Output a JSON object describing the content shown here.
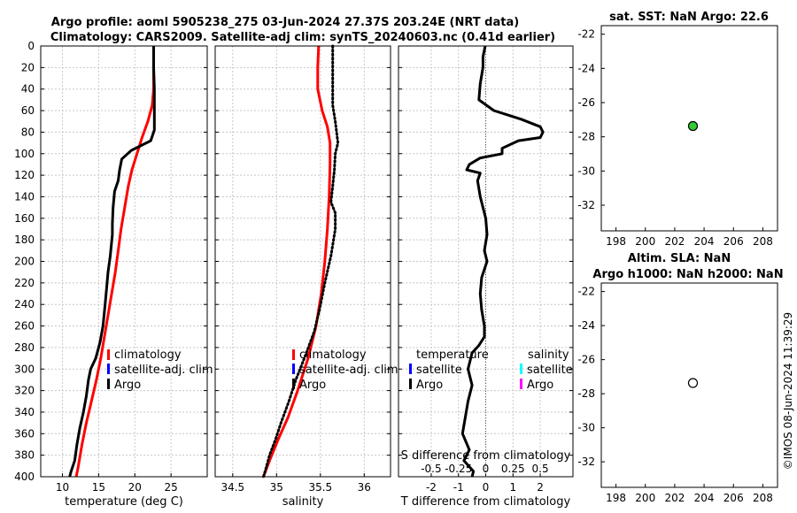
{
  "title": {
    "line1": "Argo profile: aoml 5905238_275 03-Jun-2024 27.37S 203.24E (NRT data)",
    "line2": "Climatology: CARS2009. Satellite-adj clim: synTS_20240603.nc (0.41d earlier)"
  },
  "side_titles": {
    "sst": "sat. SST: NaN Argo: 22.6",
    "sla_line1": "Altim. SLA: NaN",
    "sla_line2": "Argo h1000: NaN h2000: NaN"
  },
  "stamp": "©IMOS 08-Jun-2024 11:39:29",
  "legend": {
    "climatology": "climatology",
    "satellite_adj": "satellite-adj. clim",
    "argo": "Argo",
    "temperature": "temperature",
    "salinity": "salinity",
    "satellite": "satellite"
  },
  "colors": {
    "climatology": "#ff0000",
    "satellite_adj": "#0000ff",
    "argo": "#000000",
    "temp_satellite": "#0000ff",
    "sal_satellite": "#00ffff",
    "sal_argo": "#ff00ff",
    "sst_marker": "#33cc33"
  },
  "chart_data": [
    {
      "id": "temperature",
      "type": "line",
      "xlabel": "temperature (deg C)",
      "ylabel": "",
      "xlim": [
        7,
        30
      ],
      "ylim": [
        400,
        0
      ],
      "xticks": [
        10,
        15,
        20,
        25
      ],
      "yticks": [
        0,
        20,
        40,
        60,
        80,
        100,
        120,
        140,
        160,
        180,
        200,
        220,
        240,
        260,
        280,
        300,
        320,
        340,
        360,
        380,
        400
      ],
      "grid": true,
      "legend_position": "lower-right",
      "series": [
        {
          "name": "climatology",
          "style": "solid",
          "points": [
            [
              22.6,
              0
            ],
            [
              22.6,
              20
            ],
            [
              22.6,
              40
            ],
            [
              22.4,
              55
            ],
            [
              21.8,
              70
            ],
            [
              21.0,
              85
            ],
            [
              20.3,
              100
            ],
            [
              19.6,
              115
            ],
            [
              19.1,
              130
            ],
            [
              18.6,
              150
            ],
            [
              18.1,
              170
            ],
            [
              17.7,
              190
            ],
            [
              17.3,
              210
            ],
            [
              16.8,
              230
            ],
            [
              16.3,
              250
            ],
            [
              15.8,
              270
            ],
            [
              15.3,
              290
            ],
            [
              14.7,
              310
            ],
            [
              14.0,
              330
            ],
            [
              13.3,
              350
            ],
            [
              12.7,
              370
            ],
            [
              12.2,
              390
            ],
            [
              11.9,
              400
            ]
          ]
        },
        {
          "name": "Argo",
          "style": "solid",
          "points": [
            [
              22.6,
              0
            ],
            [
              22.6,
              20
            ],
            [
              22.7,
              40
            ],
            [
              22.7,
              60
            ],
            [
              22.7,
              78
            ],
            [
              22.2,
              88
            ],
            [
              19.5,
              97
            ],
            [
              18.2,
              105
            ],
            [
              17.9,
              115
            ],
            [
              17.7,
              125
            ],
            [
              17.2,
              135
            ],
            [
              17.0,
              150
            ],
            [
              16.9,
              165
            ],
            [
              16.9,
              175
            ],
            [
              16.6,
              195
            ],
            [
              16.3,
              210
            ],
            [
              16.1,
              225
            ],
            [
              15.9,
              240
            ],
            [
              15.6,
              260
            ],
            [
              15.2,
              275
            ],
            [
              14.6,
              290
            ],
            [
              13.9,
              300
            ],
            [
              13.6,
              310
            ],
            [
              13.3,
              325
            ],
            [
              12.9,
              340
            ],
            [
              12.4,
              355
            ],
            [
              12.0,
              370
            ],
            [
              11.7,
              385
            ],
            [
              11.2,
              395
            ],
            [
              11.0,
              400
            ]
          ]
        }
      ]
    },
    {
      "id": "salinity",
      "type": "line",
      "xlabel": "salinity",
      "ylabel": "",
      "xlim": [
        34.3,
        36.3
      ],
      "ylim": [
        400,
        0
      ],
      "xticks": [
        34.5,
        35,
        35.5,
        36
      ],
      "grid": true,
      "legend_position": "lower-right",
      "series": [
        {
          "name": "climatology",
          "style": "solid",
          "points": [
            [
              35.48,
              0
            ],
            [
              35.47,
              20
            ],
            [
              35.47,
              40
            ],
            [
              35.52,
              60
            ],
            [
              35.58,
              75
            ],
            [
              35.61,
              90
            ],
            [
              35.61,
              110
            ],
            [
              35.6,
              140
            ],
            [
              35.58,
              170
            ],
            [
              35.55,
              200
            ],
            [
              35.51,
              230
            ],
            [
              35.45,
              260
            ],
            [
              35.36,
              290
            ],
            [
              35.24,
              320
            ],
            [
              35.13,
              345
            ],
            [
              35.02,
              365
            ],
            [
              34.92,
              385
            ],
            [
              34.85,
              400
            ]
          ]
        },
        {
          "name": "Argo",
          "style": "dotted",
          "points": [
            [
              35.64,
              0
            ],
            [
              35.64,
              20
            ],
            [
              35.64,
              40
            ],
            [
              35.64,
              55
            ],
            [
              35.67,
              70
            ],
            [
              35.7,
              90
            ],
            [
              35.67,
              100
            ],
            [
              35.66,
              115
            ],
            [
              35.64,
              130
            ],
            [
              35.62,
              145
            ],
            [
              35.67,
              155
            ],
            [
              35.67,
              170
            ],
            [
              35.62,
              195
            ],
            [
              35.55,
              220
            ],
            [
              35.49,
              245
            ],
            [
              35.43,
              265
            ],
            [
              35.34,
              285
            ],
            [
              35.22,
              310
            ],
            [
              35.14,
              330
            ],
            [
              35.05,
              350
            ],
            [
              34.99,
              365
            ],
            [
              34.92,
              380
            ],
            [
              34.87,
              395
            ],
            [
              34.85,
              400
            ]
          ]
        }
      ]
    },
    {
      "id": "difference",
      "type": "line",
      "xlabel": "T difference from climatology",
      "xlabel_top": "S difference from climatology",
      "xlim": [
        -3.2,
        3.2
      ],
      "ylim": [
        400,
        0
      ],
      "xticks": [
        -2,
        -1,
        0,
        1,
        2
      ],
      "xticks_salinity": [
        -0.5,
        -0.25,
        0,
        0.25,
        0.5
      ],
      "grid": true,
      "legend_position": "lower",
      "series": [
        {
          "name": "Argo",
          "style": "solid",
          "points": [
            [
              -0.02,
              0
            ],
            [
              -0.1,
              10
            ],
            [
              -0.1,
              20
            ],
            [
              -0.2,
              35
            ],
            [
              -0.25,
              50
            ],
            [
              0.3,
              60
            ],
            [
              1.3,
              68
            ],
            [
              2.0,
              75
            ],
            [
              2.1,
              80
            ],
            [
              2.0,
              85
            ],
            [
              1.2,
              88
            ],
            [
              0.6,
              95
            ],
            [
              0.6,
              100
            ],
            [
              -0.2,
              104
            ],
            [
              -0.6,
              110
            ],
            [
              -0.7,
              115
            ],
            [
              -0.2,
              118
            ],
            [
              -0.3,
              125
            ],
            [
              -0.2,
              140
            ],
            [
              -0.1,
              150
            ],
            [
              0.0,
              160
            ],
            [
              0.05,
              175
            ],
            [
              -0.05,
              190
            ],
            [
              0.05,
              200
            ],
            [
              -0.15,
              215
            ],
            [
              -0.2,
              230
            ],
            [
              -0.15,
              245
            ],
            [
              -0.05,
              260
            ],
            [
              -0.05,
              270
            ],
            [
              -0.25,
              278
            ],
            [
              -0.5,
              285
            ],
            [
              -0.65,
              300
            ],
            [
              -0.5,
              315
            ],
            [
              -0.65,
              330
            ],
            [
              -0.75,
              345
            ],
            [
              -0.85,
              360
            ],
            [
              -0.6,
              375
            ],
            [
              -0.8,
              385
            ],
            [
              -0.45,
              395
            ],
            [
              -0.5,
              400
            ]
          ]
        }
      ]
    },
    {
      "id": "sst-map",
      "type": "scatter",
      "xlim": [
        197,
        209
      ],
      "ylim": [
        -33.5,
        -21.5
      ],
      "xticks": [
        198,
        200,
        202,
        204,
        206,
        208
      ],
      "yticks": [
        -22,
        -24,
        -26,
        -28,
        -30,
        -32
      ],
      "series": [
        {
          "name": "Argo",
          "points": [
            [
              203.24,
              -27.37
            ]
          ],
          "marker": "filled"
        }
      ]
    },
    {
      "id": "sla-map",
      "type": "scatter",
      "xlim": [
        197,
        209
      ],
      "ylim": [
        -33.5,
        -21.5
      ],
      "xticks": [
        198,
        200,
        202,
        204,
        206,
        208
      ],
      "yticks": [
        -22,
        -24,
        -26,
        -28,
        -30,
        -32
      ],
      "series": [
        {
          "name": "Argo",
          "points": [
            [
              203.24,
              -27.37
            ]
          ],
          "marker": "open"
        }
      ]
    }
  ]
}
